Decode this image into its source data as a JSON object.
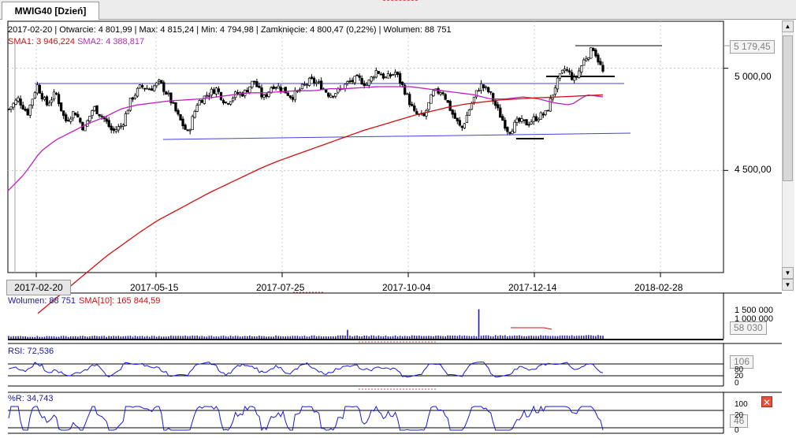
{
  "tab": {
    "label": "MWIG40 [Dzień]"
  },
  "header": {
    "info_line": "2017-02-20 | Otwarcie: 4 801,99 | Max: 4 815,24 | Min: 4 794,98 | Zamknięcie: 4 800,47 (0,22%) | Wolumen: 88 751",
    "sma1": "SMA1: 3 946,224",
    "sma2": "SMA2: 4 388,817"
  },
  "volume_panel": {
    "title": "Wolumen: 88 751",
    "sma_label": "SMA[10]: 165 844,59"
  },
  "rsi_panel": {
    "title": "RSI: 72,536"
  },
  "wr_panel": {
    "title": "%R: 34,743"
  },
  "colors": {
    "candle": "#000000",
    "sma_short": "#c020c0",
    "sma_long": "#d01010",
    "trendline": "#4040e0",
    "volume": "#2020a0",
    "indicator": "#1a1adf"
  },
  "chart_data": [
    {
      "type": "candlestick",
      "title": "MWIG40 [Dzień]",
      "x_ticks": [
        "2017-02-20",
        "2017-05-15",
        "2017-07-25",
        "2017-10-04",
        "2017-12-14",
        "2018-02-28"
      ],
      "y_ticks": [
        "4 500,00",
        "5 000,00"
      ],
      "y_tick_values": [
        4500,
        5000
      ],
      "marked_value": "5 179,45",
      "ylim": [
        4000,
        5230
      ],
      "price_path": [
        4800,
        4850,
        4780,
        4920,
        4820,
        4880,
        4740,
        4790,
        4700,
        4810,
        4760,
        4690,
        4720,
        4850,
        4910,
        4900,
        4930,
        4860,
        4760,
        4680,
        4830,
        4870,
        4900,
        4830,
        4870,
        4880,
        4940,
        4850,
        4920,
        4900,
        4860,
        4900,
        4940,
        4920,
        4870,
        4890,
        4930,
        4950,
        4920,
        4990,
        4950,
        4980,
        4890,
        4780,
        4760,
        4880,
        4890,
        4780,
        4700,
        4820,
        4920,
        4880,
        4780,
        4690,
        4740,
        4730,
        4760,
        4780,
        4920,
        5000,
        4940,
        5040,
        5100,
        4980
      ],
      "sma_short_path": [
        4400,
        4480,
        4590,
        4650,
        4690,
        4730,
        4760,
        4800,
        4820,
        4830,
        4840,
        4845,
        4850,
        4860,
        4870,
        4880,
        4880,
        4885,
        4890,
        4890,
        4900,
        4900,
        4905,
        4910,
        4910,
        4910,
        4900,
        4890,
        4880,
        4870,
        4850,
        4850,
        4860,
        4850,
        4830,
        4820,
        4870,
        4860
      ],
      "sma_long_path": [
        3800,
        3870,
        3940,
        4010,
        4080,
        4140,
        4200,
        4255,
        4300,
        4345,
        4390,
        4430,
        4470,
        4510,
        4545,
        4575,
        4605,
        4635,
        4665,
        4695,
        4720,
        4745,
        4770,
        4790,
        4810,
        4825,
        4835,
        4845,
        4850,
        4855,
        4858,
        4862,
        4866,
        4870
      ]
    },
    {
      "type": "bar",
      "title": "Wolumen",
      "y_ticks": [
        "1 500 000",
        "1 000 000"
      ],
      "marked_value": "58 030",
      "spikes": [
        {
          "position": 0.79,
          "value": 1500000
        },
        {
          "position": 0.57,
          "value": 450000
        }
      ]
    },
    {
      "type": "line",
      "title": "RSI",
      "y_ticks": [
        "80",
        "20",
        "0"
      ],
      "marked_value": "106"
    },
    {
      "type": "line",
      "title": "%R",
      "y_ticks": [
        "100",
        "20",
        "0"
      ],
      "marked_value": "46"
    }
  ]
}
